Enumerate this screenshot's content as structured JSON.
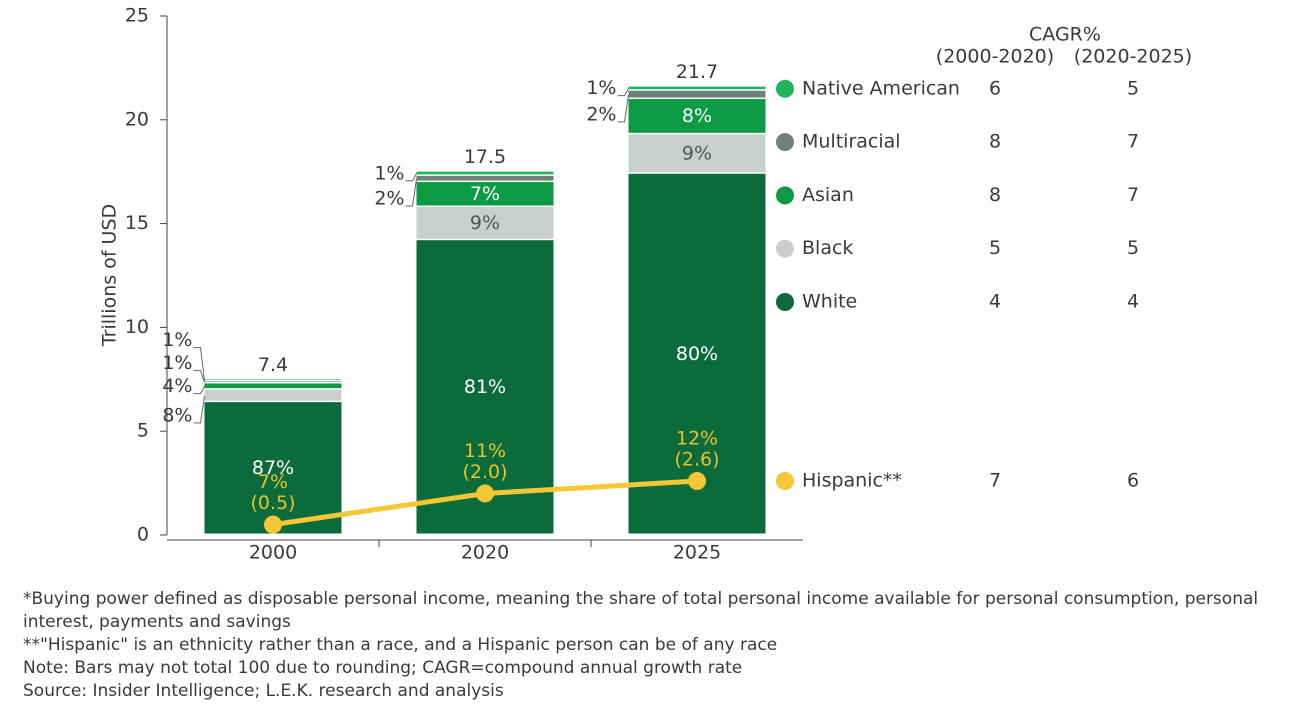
{
  "chart_data": {
    "type": "bar",
    "y_label": "Trillions of USD",
    "categories": [
      "2000",
      "2020",
      "2025"
    ],
    "ylim": [
      0,
      25
    ],
    "yticks": [
      0,
      5,
      10,
      15,
      20,
      25
    ],
    "totals": [
      7.4,
      17.5,
      21.7
    ],
    "cagr_title": "CAGR%",
    "cagr_columns": [
      "(2000-2020)",
      "(2020-2025)"
    ],
    "series": [
      {
        "name": "White",
        "color": "#0b6b3a",
        "values": [
          6.4,
          14.2,
          17.4
        ],
        "labels": [
          "87%",
          "81%",
          "80%"
        ],
        "cagr": [
          4,
          4
        ]
      },
      {
        "name": "Black",
        "color": "#c9cfcd",
        "values": [
          0.6,
          1.6,
          1.9
        ],
        "labels": [
          "8%",
          "9%",
          "9%"
        ],
        "cagr": [
          5,
          5
        ]
      },
      {
        "name": "Asian",
        "color": "#0d9a45",
        "values": [
          0.3,
          1.2,
          1.7
        ],
        "labels": [
          "4%",
          "7%",
          "8%"
        ],
        "cagr": [
          8,
          7
        ]
      },
      {
        "name": "Multiracial",
        "color": "#6f8078",
        "values": [
          0.1,
          0.3,
          0.4
        ],
        "labels": [
          "1%",
          "2%",
          "2%"
        ],
        "cagr": [
          8,
          7
        ]
      },
      {
        "name": "Native American",
        "color": "#1fb55a",
        "values": [
          0.1,
          0.2,
          0.2
        ],
        "labels": [
          "1%",
          "1%",
          "1%"
        ],
        "cagr": [
          6,
          5
        ]
      }
    ],
    "line_series": {
      "name": "Hispanic**",
      "color": "#f5c636",
      "values": [
        0.5,
        2.0,
        2.6
      ],
      "value_labels": [
        "(0.5)",
        "(2.0)",
        "(2.6)"
      ],
      "shares": [
        "7%",
        "11%",
        "12%"
      ],
      "cagr": [
        7,
        6
      ]
    },
    "notes": [
      "*Buying power defined as disposable personal income, meaning the share of total personal income available for personal consumption, personal interest, payments and savings",
      "**\"Hispanic\" is an ethnicity rather than a race, and a Hispanic person can be of any race",
      "Note: Bars may not total 100 due to rounding; CAGR=compound annual growth rate",
      "Source: Insider Intelligence; L.E.K. research and analysis"
    ]
  }
}
